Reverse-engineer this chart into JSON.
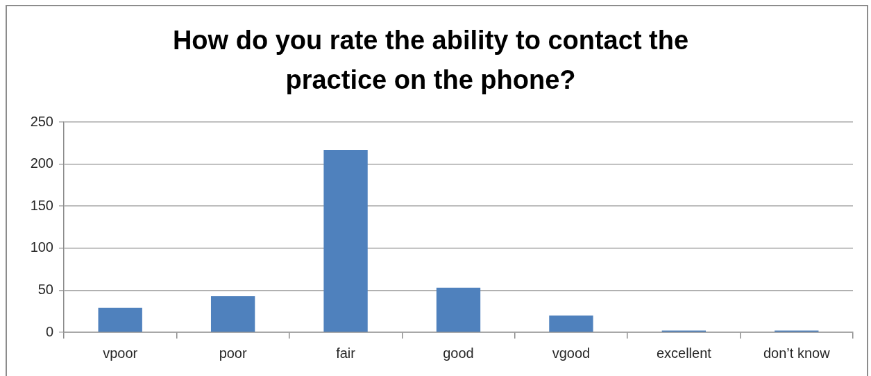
{
  "chart_data": {
    "type": "bar",
    "title": "How do you rate the ability to contact the practice on the phone?",
    "categories": [
      "vpoor",
      "poor",
      "fair",
      "good",
      "vgood",
      "excellent",
      "don’t know"
    ],
    "values": [
      29,
      43,
      217,
      53,
      20,
      2,
      2
    ],
    "color": "#4f81bd",
    "ylim": [
      0,
      250
    ],
    "yticks": [
      0,
      50,
      100,
      150,
      200,
      250
    ],
    "grid": "y"
  }
}
